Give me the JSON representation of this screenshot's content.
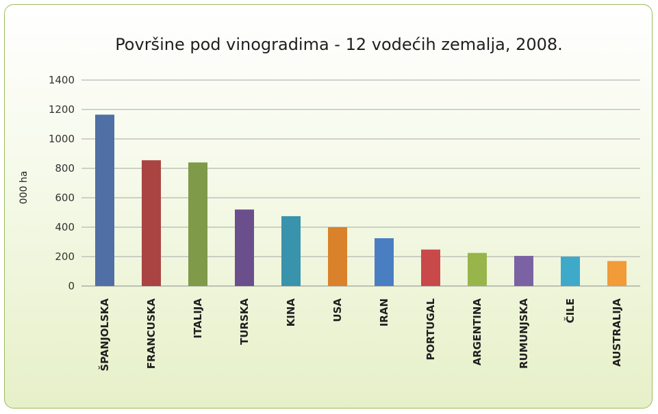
{
  "chart_data": {
    "type": "bar",
    "title": "Površine pod vinogradima - 12 vodećih zemalja, 2008.",
    "xlabel": "",
    "ylabel": "000 ha",
    "ylim": [
      0,
      1400
    ],
    "yticks": [
      0,
      200,
      400,
      600,
      800,
      1000,
      1200,
      1400
    ],
    "grid": true,
    "legend": "none",
    "categories": [
      "ŠPANJOLSKA",
      "FRANCUSKA",
      "ITALIJA",
      "TURSKA",
      "KINA",
      "USA",
      "IRAN",
      "PORTUGAL",
      "ARGENTINA",
      "RUMUNJSKA",
      "ČILE",
      "AUSTRALIJA"
    ],
    "values": [
      1165,
      855,
      840,
      520,
      475,
      400,
      325,
      248,
      225,
      205,
      200,
      170
    ],
    "colors": [
      "#4f6fa5",
      "#a94442",
      "#7f9a48",
      "#6b4f8c",
      "#3a93ad",
      "#d9822b",
      "#4a7ec2",
      "#c9494b",
      "#97b54b",
      "#7b62a3",
      "#3fa9c9",
      "#f19b39"
    ]
  }
}
